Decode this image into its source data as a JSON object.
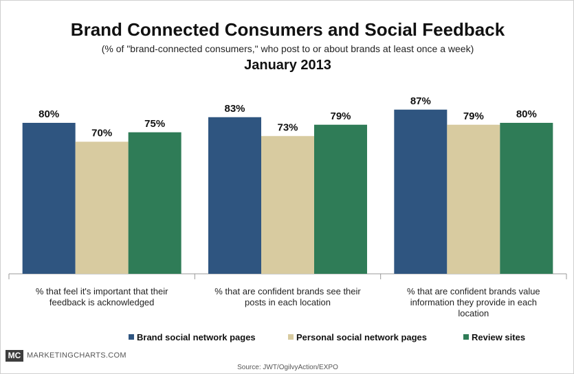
{
  "header": {
    "title": "Brand Connected Consumers and Social Feedback",
    "subtitle": "(% of \"brand-connected consumers,\" who post to or about brands at least once a week)",
    "date": "January 2013"
  },
  "chart_data": {
    "type": "bar",
    "categories": [
      [
        "% that feel it's important that their",
        "feedback is acknowledged"
      ],
      [
        "% that are confident brands see their",
        "posts in each location"
      ],
      [
        "% that are confident brands value",
        "information they provide in each",
        "location"
      ]
    ],
    "series": [
      {
        "name": "Brand social network pages",
        "color": "#2f5580",
        "values": [
          80,
          83,
          87
        ]
      },
      {
        "name": "Personal social network pages",
        "color": "#d8cba0",
        "values": [
          70,
          73,
          79
        ]
      },
      {
        "name": "Review sites",
        "color": "#2f7c57",
        "values": [
          75,
          79,
          80
        ]
      }
    ],
    "value_suffix": "%",
    "ylim": [
      0,
      100
    ],
    "grid": false,
    "legend_position": "bottom"
  },
  "footer": {
    "logo": "MC",
    "site": "MARKETINGCHARTS.COM",
    "source": "Source: JWT/OgilvyAction/EXPO"
  }
}
